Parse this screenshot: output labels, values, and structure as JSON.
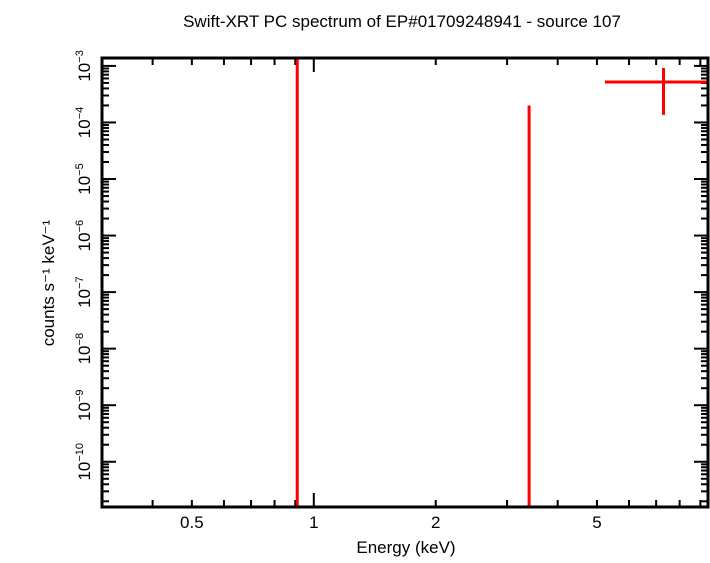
{
  "chart_data": {
    "type": "scatter",
    "title": "Swift-XRT PC spectrum of EP#01709248941 - source 107",
    "xlabel": "Energy (keV)",
    "ylabel": "counts s⁻¹ keV⁻¹",
    "x_scale": "log",
    "y_scale": "log",
    "xlim": [
      0.3,
      9.4
    ],
    "ylim_log10": [
      -10.8,
      -2.86
    ],
    "x_tick_labels": [
      {
        "value": 0.5,
        "label": "0.5"
      },
      {
        "value": 1,
        "label": "1"
      },
      {
        "value": 2,
        "label": "2"
      },
      {
        "value": 5,
        "label": "5"
      }
    ],
    "y_tick_labels": [
      {
        "exp": -3,
        "label": "10",
        "sup": "−3"
      },
      {
        "exp": -4,
        "label": "10",
        "sup": "−4"
      },
      {
        "exp": -5,
        "label": "10",
        "sup": "−5"
      },
      {
        "exp": -6,
        "label": "10",
        "sup": "−6"
      },
      {
        "exp": -7,
        "label": "10",
        "sup": "−7"
      },
      {
        "exp": -8,
        "label": "10",
        "sup": "−8"
      },
      {
        "exp": -9,
        "label": "10",
        "sup": "−9"
      },
      {
        "exp": -10,
        "label": "10",
        "sup": "−10"
      }
    ],
    "grid": false,
    "color": "#ff0000",
    "points": [
      {
        "x": 0.91,
        "xlo": 0.91,
        "xhi": 0.91,
        "ylo": 1e-12,
        "yhi": 0.01
      },
      {
        "x": 3.4,
        "xlo": 3.4,
        "xhi": 3.4,
        "ylo": 1e-12,
        "yhi": 0.0002
      },
      {
        "x": 7.3,
        "xlo": 5.23,
        "xhi": 9.4,
        "y": 0.00052,
        "ylo": 0.000136,
        "yhi": 0.00092
      }
    ]
  }
}
